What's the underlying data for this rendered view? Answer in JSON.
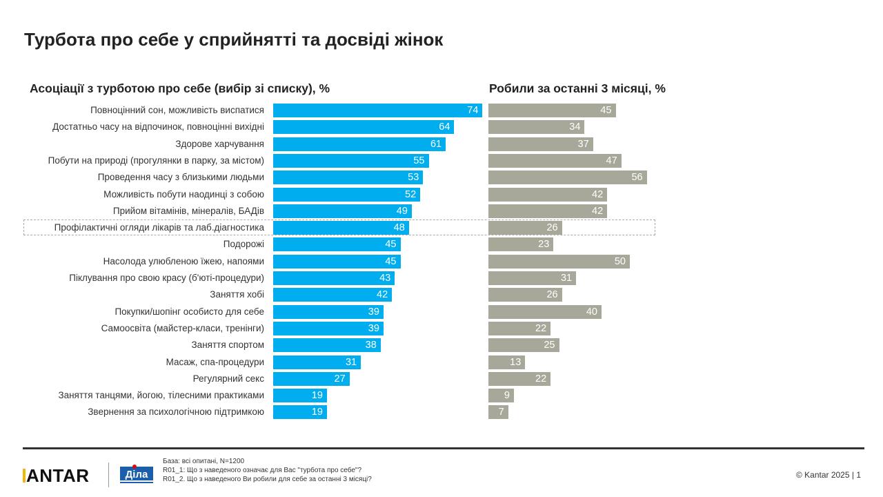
{
  "title": "Турбота про себе у сприйнятті та досвіді жінок",
  "chart_data": [
    {
      "type": "bar",
      "orientation": "horizontal",
      "title": "Асоціації з турботою про себе (вибір зі списку), %",
      "color": "#00aeef",
      "xlim": [
        0,
        80
      ],
      "categories": [
        "Повноцінний сон, можливість виспатися",
        "Достатньо часу на відпочинок, повноцінні вихідні",
        "Здорове харчування",
        "Побути на природі (прогулянки в парку, за містом)",
        "Проведення часу з близькими людьми",
        "Можливість побути наодинці з собою",
        "Прийом вітамінів, мінералів, БАДів",
        "Профілактичні огляди лікарів та лаб.діагностика",
        "Подорожі",
        "Насолода улюбленою їжею, напоями",
        "Піклування про свою красу (б'юті-процедури)",
        "Заняття хобі",
        "Покупки/шопінг особисто для себе",
        "Самоосвіта (майстер-класи, тренінги)",
        "Заняття спортом",
        "Масаж, спа-процедури",
        "Регулярний секс",
        "Заняття танцями, йогою, тілесними практиками",
        "Звернення за психологічною підтримкою"
      ],
      "values": [
        74,
        64,
        61,
        55,
        53,
        52,
        49,
        48,
        45,
        45,
        43,
        42,
        39,
        39,
        38,
        31,
        27,
        19,
        19
      ],
      "highlighted": "Профілактичні огляди лікарів та лаб.діагностика"
    },
    {
      "type": "bar",
      "orientation": "horizontal",
      "title": "Робили за останні 3 місяці, %",
      "color": "#a7a79a",
      "xlim": [
        0,
        80
      ],
      "values": [
        45,
        34,
        37,
        47,
        56,
        42,
        42,
        26,
        23,
        50,
        31,
        26,
        40,
        22,
        25,
        13,
        22,
        9,
        7
      ]
    }
  ],
  "footer": {
    "notes": [
      "База: всі опитані, N=1200",
      "R01_1: Що з наведеного означає для Вас \"турбота про себе\"?",
      "R01_2. Що з наведеного Ви робили для себе за останні 3 місяці?"
    ],
    "logo": "KANTAR",
    "partner_logo": "Діла",
    "copyright": "© Kantar 2025 | 1"
  }
}
